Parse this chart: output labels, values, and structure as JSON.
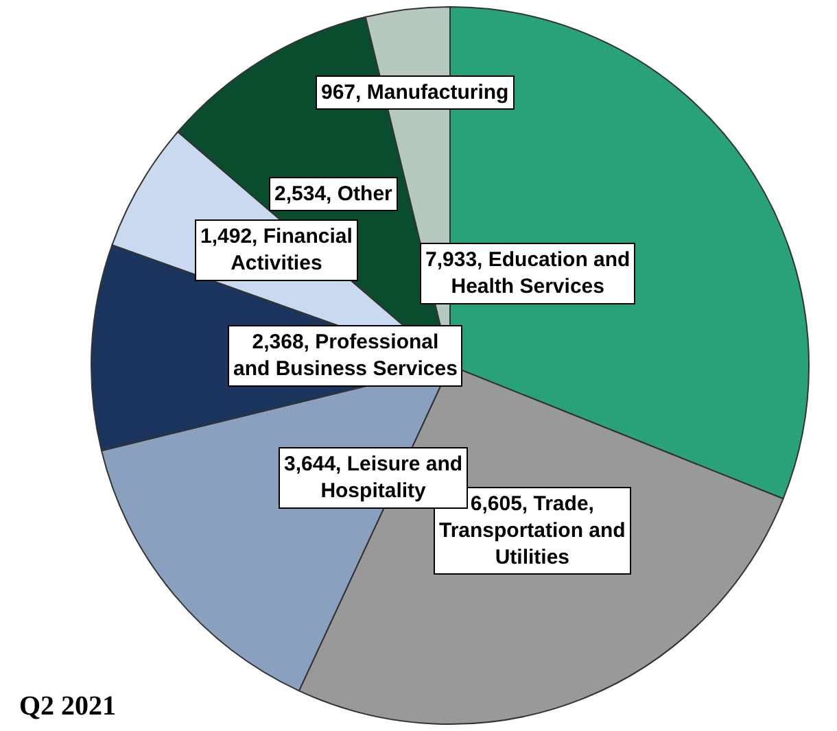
{
  "chart_data": {
    "type": "pie",
    "categories": [
      "Education and Health Services",
      "Trade, Transportation and Utilities",
      "Leisure and Hospitality",
      "Professional and Business Services",
      "Financial Activities",
      "Other",
      "Manufacturing"
    ],
    "values": [
      7933,
      6605,
      3644,
      2368,
      1492,
      2534,
      967
    ],
    "value_labels": [
      "7,933",
      "6,605",
      "3,644",
      "2,368",
      "1,492",
      "2,534",
      "967"
    ],
    "colors": [
      "#2aa277",
      "#999999",
      "#8aa0bf",
      "#1c355e",
      "#c9d9f0",
      "#0a4d2e",
      "#b5c9bf"
    ],
    "annotations": [
      "Q2 2021"
    ],
    "legend": false
  }
}
